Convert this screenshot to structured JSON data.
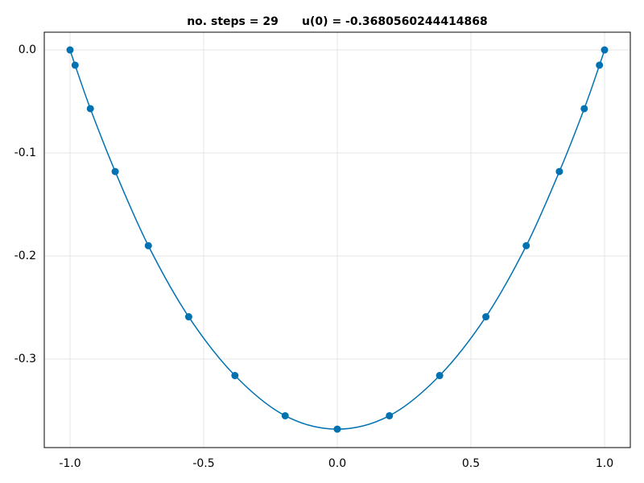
{
  "chart_data": {
    "type": "line",
    "title": "no. steps = 29      u(0) = -0.3680560244414868",
    "x": [
      -1,
      -0.981,
      -0.924,
      -0.831,
      -0.707,
      -0.556,
      -0.383,
      -0.195,
      0,
      0.195,
      0.383,
      0.556,
      0.707,
      0.831,
      0.924,
      0.981,
      1
    ],
    "series": [
      {
        "color": "#0072b2",
        "markers": true,
        "values": [
          0,
          -0.0148,
          -0.057,
          -0.118,
          -0.19,
          -0.259,
          -0.316,
          -0.355,
          -0.368,
          -0.355,
          -0.316,
          -0.259,
          -0.19,
          -0.118,
          -0.057,
          -0.0148,
          0
        ]
      }
    ],
    "xlim": [
      -1.0964,
      1.0964
    ],
    "ylim": [
      -0.3859,
      0.0172
    ],
    "xticks": [
      {
        "value": -1,
        "label": "-1.0"
      },
      {
        "value": -0.5,
        "label": "-0.5"
      },
      {
        "value": 0,
        "label": "0.0"
      },
      {
        "value": 0.5,
        "label": "0.5"
      },
      {
        "value": 1,
        "label": "1.0"
      }
    ],
    "yticks": [
      {
        "value": 0,
        "label": "0.0"
      },
      {
        "value": -0.1,
        "label": "-0.1"
      },
      {
        "value": -0.2,
        "label": "-0.2"
      },
      {
        "value": -0.3,
        "label": "-0.3"
      }
    ],
    "grid": true
  }
}
